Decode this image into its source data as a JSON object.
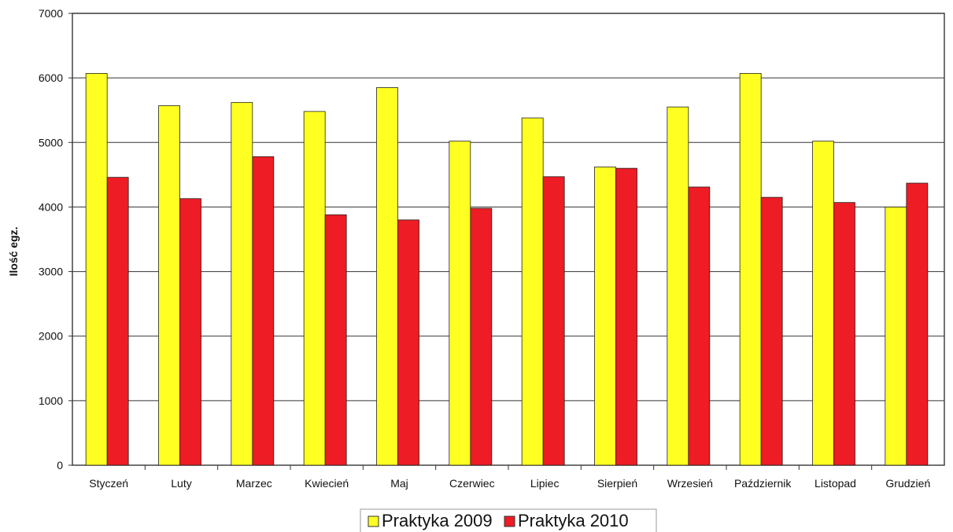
{
  "chart_data": {
    "type": "bar",
    "title": "",
    "xlabel": "",
    "ylabel": "Ilość egz.",
    "ylim": [
      0,
      7000
    ],
    "yticks": [
      0,
      1000,
      2000,
      3000,
      4000,
      5000,
      6000,
      7000
    ],
    "grid": true,
    "legend_position": "bottom",
    "categories": [
      "Styczeń",
      "Luty",
      "Marzec",
      "Kwiecień",
      "Maj",
      "Czerwiec",
      "Lipiec",
      "Sierpień",
      "Wrzesień",
      "Październik",
      "Listopad",
      "Grudzień"
    ],
    "series": [
      {
        "name": "Praktyka 2009",
        "color": "#ffff22",
        "values": [
          6070,
          5570,
          5620,
          5480,
          5850,
          5020,
          5380,
          4620,
          5550,
          6070,
          5020,
          4000
        ]
      },
      {
        "name": "Praktyka 2010",
        "color": "#ee1c24",
        "values": [
          4460,
          4130,
          4780,
          3880,
          3800,
          3980,
          4470,
          4600,
          4310,
          4150,
          4070,
          4370
        ]
      }
    ]
  }
}
